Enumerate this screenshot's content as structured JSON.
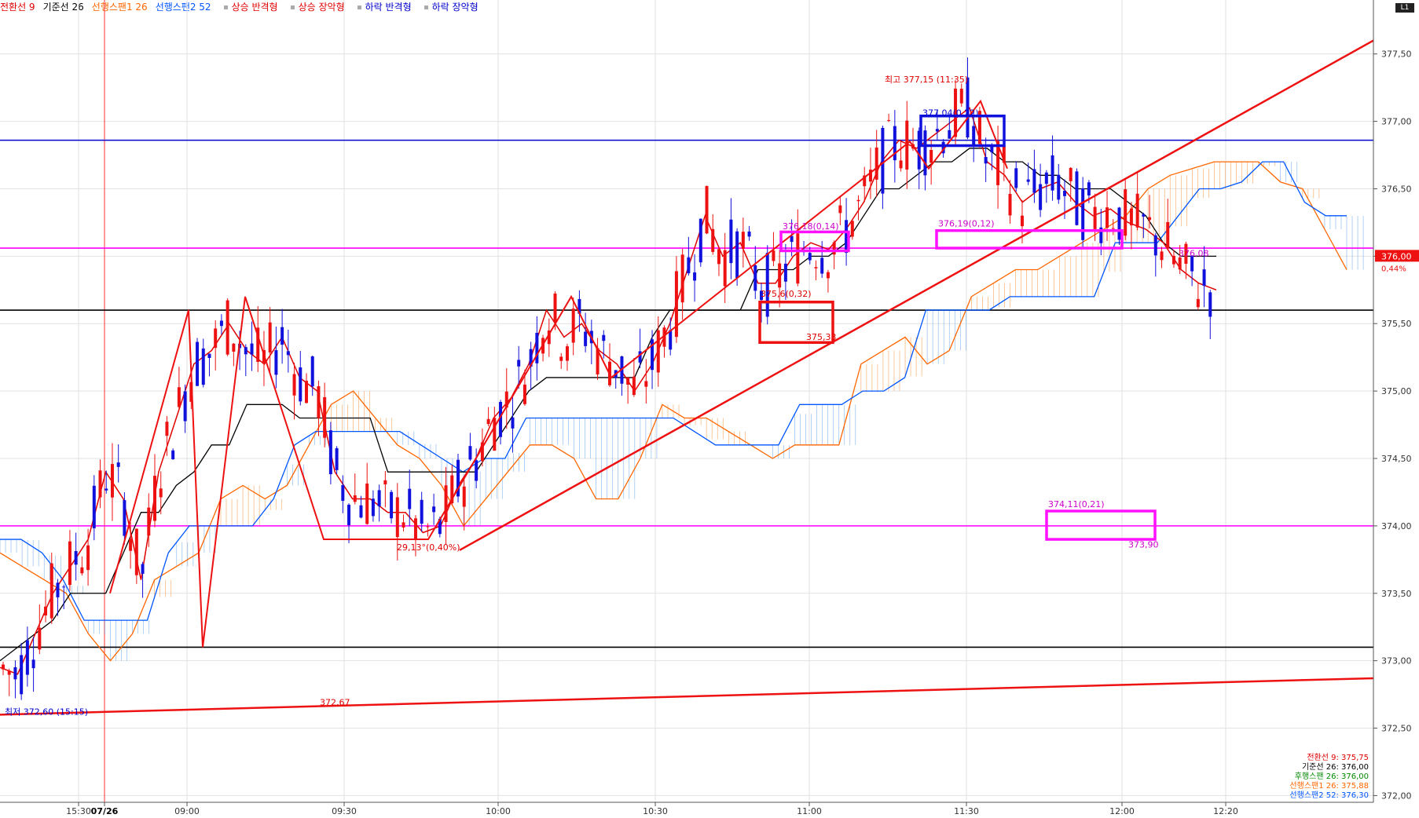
{
  "legend": [
    {
      "label": "전환선 9",
      "color": "#e00000"
    },
    {
      "label": "기준선 26",
      "color": "#000000"
    },
    {
      "label": "선행스팬1 26",
      "color": "#ff6600"
    },
    {
      "label": "선행스팬2 52",
      "color": "#0055ff"
    },
    {
      "label": "상승 반격형",
      "color": "#e00000"
    },
    {
      "label": "상승 장악형",
      "color": "#e00000"
    },
    {
      "label": "하락 반격형",
      "color": "#0000cc"
    },
    {
      "label": "하락 장악형",
      "color": "#0000cc"
    }
  ],
  "corner_badge": "L1",
  "chart_data": {
    "type": "candlestick",
    "y_ticks": [
      "372,00",
      "372,50",
      "373,00",
      "373,50",
      "374,00",
      "374,50",
      "375,00",
      "375,50",
      "376,00",
      "376,50",
      "377,00",
      "377,50"
    ],
    "y_tick_values": [
      372.0,
      372.5,
      373.0,
      373.5,
      374.0,
      374.5,
      375.0,
      375.5,
      376.0,
      376.5,
      377.0,
      377.5
    ],
    "ylim": [
      371.95,
      377.9
    ],
    "x_ticks": [
      "15:30",
      "07/26",
      "09:00",
      "09:30",
      "10:00",
      "10:30",
      "11:00",
      "11:30",
      "12:00",
      "12:20"
    ],
    "x_tick_times": [
      "15:30",
      "09:00",
      "09:00",
      "09:30",
      "10:00",
      "10:30",
      "11:00",
      "11:30",
      "12:00",
      "12:20"
    ],
    "session_start_label": "07/26",
    "horizontal_lines": [
      {
        "value": 376.86,
        "color": "#0000cc"
      },
      {
        "value": 376.06,
        "color": "#ff00ff"
      },
      {
        "value": 375.6,
        "color": "#000000"
      },
      {
        "value": 374.0,
        "color": "#ff00ff"
      },
      {
        "value": 373.1,
        "color": "#000000"
      }
    ],
    "current_price": "376,00",
    "current_change": "0,44%",
    "annotations": [
      {
        "text": "최고 377,15 (11:35)",
        "color": "#e00000"
      },
      {
        "text": "377,04(0,22)",
        "color": "#0000cc"
      },
      {
        "text": "376,18(0,14)",
        "color": "#cc00cc"
      },
      {
        "text": "376,19(0,12)",
        "color": "#cc00cc"
      },
      {
        "text": "375,6(0,32)",
        "color": "#e00000"
      },
      {
        "text": "375,33",
        "color": "#e00000"
      },
      {
        "text": "374,11(0,21)",
        "color": "#cc00cc"
      },
      {
        "text": "373,90",
        "color": "#cc00cc"
      },
      {
        "text": "29,13°(0,40%)",
        "color": "#e00000"
      },
      {
        "text": "372,67",
        "color": "#e00000"
      },
      {
        "text": "최저 372,60 (15:15)",
        "color": "#0000cc"
      },
      {
        "text": "376,08",
        "color": "#cc00cc"
      }
    ],
    "indicator_values": [
      {
        "text": "전환선 9: 375,75",
        "color": "#e00000"
      },
      {
        "text": "기준선 26: 376,00",
        "color": "#000000"
      },
      {
        "text": "후행스팬 26: 376,00",
        "color": "#008800"
      },
      {
        "text": "선행스팬1 26: 375,88",
        "color": "#ff6600"
      },
      {
        "text": "선행스팬2 52: 376,30",
        "color": "#0055ff"
      }
    ],
    "series": [
      {
        "name": "전환선 9",
        "color": "#e00000",
        "values": [
          372.95,
          372.9,
          373.2,
          373.5,
          373.7,
          373.9,
          374.4,
          374.2,
          373.6,
          374.4,
          374.8,
          375.2,
          375.3,
          375.5,
          375.3,
          375.2,
          375.4,
          375.1,
          375.0,
          374.4,
          374.2,
          374.2,
          374.1,
          374.1,
          373.95,
          374.0,
          374.3,
          374.5,
          374.8,
          374.95,
          375.2,
          375.6,
          375.4,
          375.5,
          375.3,
          375.2,
          375.0,
          375.2,
          375.5,
          375.9,
          376.3,
          376.0,
          376.1,
          375.8,
          375.8,
          376.0,
          376.1,
          376.05,
          376.2,
          376.4,
          376.7,
          376.86,
          376.8,
          376.9,
          377.0,
          377.1,
          376.7,
          376.6,
          376.4,
          376.5,
          376.55,
          376.4,
          376.3,
          376.35,
          376.25,
          376.2,
          376.1,
          375.9,
          375.8,
          375.75
        ]
      },
      {
        "name": "기준선 26",
        "color": "#000000",
        "values": [
          373.0,
          373.1,
          373.2,
          373.3,
          373.5,
          373.5,
          373.5,
          373.8,
          374.1,
          374.1,
          374.3,
          374.4,
          374.6,
          374.6,
          374.9,
          374.9,
          374.9,
          374.8,
          374.8,
          374.8,
          374.8,
          374.8,
          374.4,
          374.4,
          374.4,
          374.4,
          374.4,
          374.4,
          374.6,
          374.8,
          375.0,
          375.1,
          375.1,
          375.1,
          375.1,
          375.1,
          375.1,
          375.4,
          375.6,
          375.6,
          375.6,
          375.6,
          375.6,
          375.9,
          375.9,
          375.9,
          376.0,
          376.0,
          376.1,
          376.3,
          376.5,
          376.5,
          376.6,
          376.7,
          376.7,
          376.8,
          376.8,
          376.7,
          376.7,
          376.6,
          376.6,
          376.5,
          376.5,
          376.5,
          376.4,
          376.3,
          376.1,
          376.0,
          376.0,
          376.0
        ]
      },
      {
        "name": "선행스팬1 26",
        "color": "#ff6600",
        "values": [
          373.8,
          373.7,
          373.6,
          373.5,
          373.2,
          373.0,
          373.2,
          373.6,
          373.7,
          373.8,
          374.2,
          374.3,
          374.2,
          374.3,
          374.6,
          374.9,
          375.0,
          374.8,
          374.6,
          374.5,
          374.3,
          374.0,
          374.2,
          374.4,
          374.6,
          374.6,
          374.5,
          374.2,
          374.2,
          374.5,
          374.9,
          374.8,
          374.8,
          374.7,
          374.6,
          374.5,
          374.6,
          374.6,
          374.6,
          375.2,
          375.3,
          375.4,
          375.2,
          375.3,
          375.7,
          375.8,
          375.9,
          375.9,
          376.0,
          376.1,
          376.2,
          376.3,
          376.5,
          376.6,
          376.65,
          376.7,
          376.7,
          376.7,
          376.55,
          376.5,
          376.2,
          375.9
        ]
      },
      {
        "name": "선행스팬2 52",
        "color": "#0055ff",
        "values": [
          373.9,
          373.9,
          373.8,
          373.6,
          373.3,
          373.3,
          373.3,
          373.3,
          373.8,
          374.0,
          374.0,
          374.0,
          374.0,
          374.2,
          374.6,
          374.7,
          374.7,
          374.7,
          374.7,
          374.7,
          374.6,
          374.5,
          374.4,
          374.5,
          374.5,
          374.8,
          374.8,
          374.8,
          374.8,
          374.8,
          374.8,
          374.8,
          374.8,
          374.7,
          374.6,
          374.6,
          374.6,
          374.6,
          374.9,
          374.9,
          374.9,
          375.0,
          375.0,
          375.1,
          375.6,
          375.6,
          375.6,
          375.6,
          375.7,
          375.7,
          375.7,
          375.7,
          375.7,
          376.1,
          376.1,
          376.1,
          376.3,
          376.5,
          376.5,
          376.55,
          376.7,
          376.7,
          376.4,
          376.3,
          376.3
        ]
      }
    ]
  }
}
